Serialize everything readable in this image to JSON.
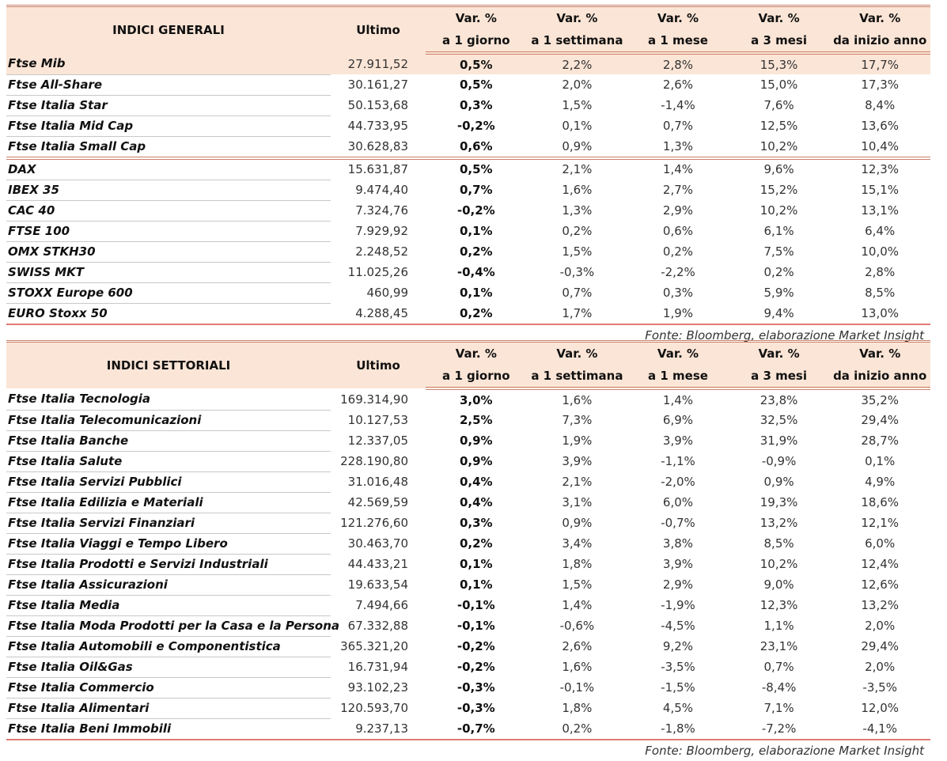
{
  "colors": {
    "header_bg": "#fbe5d6",
    "border": "#c9806a"
  },
  "tables": [
    {
      "title": "INDICI GENERALI",
      "headers": {
        "last": "Ultimo",
        "cols": [
          [
            "Var. %",
            "a 1 giorno"
          ],
          [
            "Var. %",
            "a 1 settimana"
          ],
          [
            "Var. %",
            "a 1 mese"
          ],
          [
            "Var. %",
            "a 3 mesi"
          ],
          [
            "Var. %",
            "da inizio anno"
          ]
        ]
      },
      "groups": [
        [
          [
            "Ftse Mib",
            "27.911,52",
            "0,5%",
            "2,2%",
            "2,8%",
            "15,3%",
            "17,7%"
          ],
          [
            "Ftse All-Share",
            "30.161,27",
            "0,5%",
            "2,0%",
            "2,6%",
            "15,0%",
            "17,3%"
          ],
          [
            "Ftse Italia Star",
            "50.153,68",
            "0,3%",
            "1,5%",
            "-1,4%",
            "7,6%",
            "8,4%"
          ],
          [
            "Ftse Italia Mid Cap",
            "44.733,95",
            "-0,2%",
            "0,1%",
            "0,7%",
            "12,5%",
            "13,6%"
          ],
          [
            "Ftse Italia Small Cap",
            "30.628,83",
            "0,6%",
            "0,9%",
            "1,3%",
            "10,2%",
            "10,4%"
          ]
        ],
        [
          [
            "DAX",
            "15.631,87",
            "0,5%",
            "2,1%",
            "1,4%",
            "9,6%",
            "12,3%"
          ],
          [
            "IBEX 35",
            "9.474,40",
            "0,7%",
            "1,6%",
            "2,7%",
            "15,2%",
            "15,1%"
          ],
          [
            "CAC 40",
            "7.324,76",
            "-0,2%",
            "1,3%",
            "2,9%",
            "10,2%",
            "13,1%"
          ],
          [
            "FTSE 100",
            "7.929,92",
            "0,1%",
            "0,2%",
            "0,6%",
            "6,1%",
            "6,4%"
          ],
          [
            "OMX STKH30",
            "2.248,52",
            "0,2%",
            "1,5%",
            "0,2%",
            "7,5%",
            "10,0%"
          ],
          [
            "SWISS MKT",
            "11.025,26",
            "-0,4%",
            "-0,3%",
            "-2,2%",
            "0,2%",
            "2,8%"
          ],
          [
            "STOXX Europe 600",
            "460,99",
            "0,1%",
            "0,7%",
            "0,3%",
            "5,9%",
            "8,5%"
          ],
          [
            "EURO Stoxx 50",
            "4.288,45",
            "0,2%",
            "1,7%",
            "1,9%",
            "9,4%",
            "13,0%"
          ]
        ]
      ],
      "source": "Fonte: Bloomberg, elaborazione Market Insight"
    },
    {
      "title": "INDICI SETTORIALI",
      "headers": {
        "last": "Ultimo",
        "cols": [
          [
            "Var. %",
            "a 1 giorno"
          ],
          [
            "Var. %",
            "a 1 settimana"
          ],
          [
            "Var. %",
            "a 1 mese"
          ],
          [
            "Var. %",
            "a 3 mesi"
          ],
          [
            "Var. %",
            "da inizio anno"
          ]
        ]
      },
      "groups": [
        [
          [
            "Ftse Italia Tecnologia",
            "169.314,90",
            "3,0%",
            "1,6%",
            "1,4%",
            "23,8%",
            "35,2%"
          ],
          [
            "Ftse Italia Telecomunicazioni",
            "10.127,53",
            "2,5%",
            "7,3%",
            "6,9%",
            "32,5%",
            "29,4%"
          ],
          [
            "Ftse Italia Banche",
            "12.337,05",
            "0,9%",
            "1,9%",
            "3,9%",
            "31,9%",
            "28,7%"
          ],
          [
            "Ftse Italia Salute",
            "228.190,80",
            "0,9%",
            "3,9%",
            "-1,1%",
            "-0,9%",
            "0,1%"
          ],
          [
            "Ftse Italia Servizi Pubblici",
            "31.016,48",
            "0,4%",
            "2,1%",
            "-2,0%",
            "0,9%",
            "4,9%"
          ],
          [
            "Ftse Italia Edilizia e Materiali",
            "42.569,59",
            "0,4%",
            "3,1%",
            "6,0%",
            "19,3%",
            "18,6%"
          ],
          [
            "Ftse Italia Servizi Finanziari",
            "121.276,60",
            "0,3%",
            "0,9%",
            "-0,7%",
            "13,2%",
            "12,1%"
          ],
          [
            "Ftse Italia Viaggi e Tempo Libero",
            "30.463,70",
            "0,2%",
            "3,4%",
            "3,8%",
            "8,5%",
            "6,0%"
          ],
          [
            "Ftse Italia Prodotti e Servizi Industriali",
            "44.433,21",
            "0,1%",
            "1,8%",
            "3,9%",
            "10,2%",
            "12,4%"
          ],
          [
            "Ftse Italia Assicurazioni",
            "19.633,54",
            "0,1%",
            "1,5%",
            "2,9%",
            "9,0%",
            "12,6%"
          ],
          [
            "Ftse Italia Media",
            "7.494,66",
            "-0,1%",
            "1,4%",
            "-1,9%",
            "12,3%",
            "13,2%"
          ],
          [
            "Ftse Italia Moda Prodotti per la Casa e la Persona",
            "67.332,88",
            "-0,1%",
            "-0,6%",
            "-4,5%",
            "1,1%",
            "2,0%"
          ],
          [
            "Ftse Italia Automobili e Componentistica",
            "365.321,20",
            "-0,2%",
            "2,6%",
            "9,2%",
            "23,1%",
            "29,4%"
          ],
          [
            "Ftse Italia Oil&Gas",
            "16.731,94",
            "-0,2%",
            "1,6%",
            "-3,5%",
            "0,7%",
            "2,0%"
          ],
          [
            "Ftse Italia Commercio",
            "93.102,23",
            "-0,3%",
            "-0,1%",
            "-1,5%",
            "-8,4%",
            "-3,5%"
          ],
          [
            "Ftse Italia Alimentari",
            "120.593,70",
            "-0,3%",
            "1,8%",
            "4,5%",
            "7,1%",
            "12,0%"
          ],
          [
            "Ftse Italia Beni Immobili",
            "9.237,13",
            "-0,7%",
            "0,2%",
            "-1,8%",
            "-7,2%",
            "-4,1%"
          ]
        ]
      ],
      "source": "Fonte: Bloomberg, elaborazione Market Insight"
    }
  ]
}
